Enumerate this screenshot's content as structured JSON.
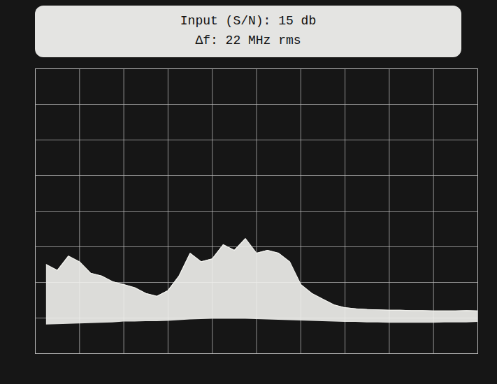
{
  "chart_data": {
    "type": "area",
    "title": "Input (S/N): 15 db",
    "subtitle": "Δf: 22 MHz rms",
    "x": [
      0.25,
      0.5,
      0.75,
      1.0,
      1.25,
      1.5,
      1.75,
      2.0,
      2.25,
      2.5,
      2.75,
      3.0,
      3.25,
      3.5,
      3.75,
      4.0,
      4.25,
      4.5,
      4.75,
      5.0,
      5.25,
      5.5,
      5.75,
      6.0,
      6.25,
      6.5,
      6.75,
      7.0,
      7.25,
      7.5,
      7.75,
      8.0,
      8.25,
      8.5,
      8.75,
      9.0,
      9.25,
      9.5,
      9.75,
      10.0
    ],
    "values": [
      2.5,
      2.34,
      2.74,
      2.58,
      2.26,
      2.18,
      2.02,
      1.94,
      1.85,
      1.69,
      1.61,
      1.77,
      2.18,
      2.82,
      2.58,
      2.66,
      3.06,
      2.9,
      3.23,
      2.82,
      2.9,
      2.82,
      2.58,
      1.94,
      1.69,
      1.53,
      1.37,
      1.29,
      1.26,
      1.24,
      1.23,
      1.22,
      1.22,
      1.21,
      1.21,
      1.2,
      1.2,
      1.2,
      1.21,
      1.2
    ],
    "lower": [
      0.81,
      0.82,
      0.83,
      0.84,
      0.85,
      0.86,
      0.87,
      0.89,
      0.89,
      0.9,
      0.9,
      0.91,
      0.93,
      0.95,
      0.96,
      0.97,
      0.97,
      0.97,
      0.97,
      0.96,
      0.95,
      0.94,
      0.93,
      0.92,
      0.91,
      0.9,
      0.89,
      0.88,
      0.88,
      0.87,
      0.87,
      0.86,
      0.86,
      0.86,
      0.86,
      0.86,
      0.87,
      0.87,
      0.87,
      0.88
    ],
    "color": "#f2f2ee",
    "xlim": [
      0,
      10
    ],
    "ylim": [
      0,
      8
    ],
    "xticks": [
      0,
      1,
      2,
      3,
      4,
      5,
      6,
      7,
      8,
      9,
      10
    ],
    "yticks": [
      0,
      1,
      2,
      3,
      4,
      5,
      6,
      7,
      8
    ],
    "grid": true,
    "tick_labels": false
  }
}
